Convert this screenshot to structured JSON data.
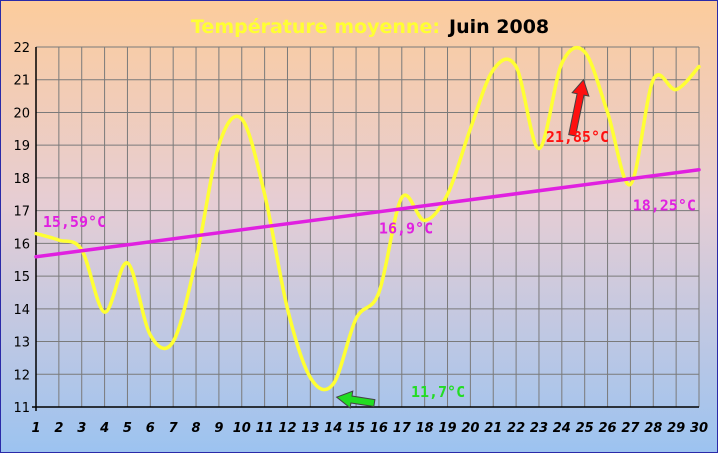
{
  "chart_data": {
    "type": "line",
    "title_prefix": "Température moyenne:",
    "title_month": "Juin 2008",
    "xlim": [
      1,
      30
    ],
    "ylim": [
      11,
      22
    ],
    "grid": true,
    "x_ticks": [
      1,
      2,
      3,
      4,
      5,
      6,
      7,
      8,
      9,
      10,
      11,
      12,
      13,
      14,
      15,
      16,
      17,
      18,
      19,
      20,
      21,
      22,
      23,
      24,
      25,
      26,
      27,
      28,
      29,
      30
    ],
    "y_ticks": [
      11,
      12,
      13,
      14,
      15,
      16,
      17,
      18,
      19,
      20,
      21,
      22
    ],
    "series": [
      {
        "color": "#ffff33",
        "x": [
          1,
          2,
          3,
          4,
          5,
          6,
          7,
          8,
          9,
          10,
          11,
          12,
          13,
          14,
          15,
          16,
          17,
          18,
          19,
          20,
          21,
          22,
          23,
          24,
          25,
          26,
          27,
          28,
          29,
          30
        ],
        "y": [
          16.3,
          16.1,
          15.8,
          13.9,
          15.4,
          13.2,
          13.0,
          15.5,
          19.0,
          19.8,
          17.5,
          14.0,
          11.9,
          11.7,
          13.7,
          14.5,
          17.4,
          16.7,
          17.5,
          19.5,
          21.3,
          21.4,
          18.9,
          21.5,
          21.85,
          20.0,
          17.8,
          21.0,
          20.7,
          21.4
        ]
      },
      {
        "color": "#e020e0",
        "x": [
          1,
          30
        ],
        "y": [
          15.59,
          18.25
        ]
      }
    ],
    "annotations": [
      {
        "text": "15,59°C",
        "color": "#e020e0",
        "x": 1.3,
        "y": 16.5
      },
      {
        "text": "16,9°C",
        "color": "#e020e0",
        "x": 16.0,
        "y": 16.3
      },
      {
        "text": "11,7°C",
        "color": "#22dd22",
        "x": 17.4,
        "y": 11.3
      },
      {
        "text": "21,85°C",
        "color": "#ff1010",
        "x": 23.3,
        "y": 19.1
      },
      {
        "text": "18,25°C",
        "color": "#e020e0",
        "x": 27.1,
        "y": 17.0
      }
    ],
    "arrows": [
      {
        "color": "#22dd22",
        "from_x": 15.8,
        "from_y": 11.12,
        "to_x": 14.15,
        "to_y": 11.3
      },
      {
        "color": "#ff1010",
        "from_x": 24.45,
        "from_y": 19.3,
        "to_x": 24.95,
        "to_y": 21.0
      }
    ]
  }
}
